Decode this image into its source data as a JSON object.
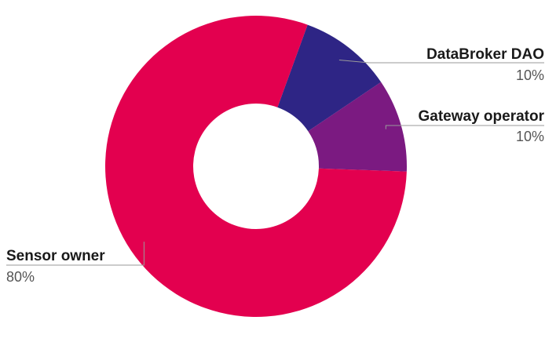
{
  "chart_data": {
    "type": "pie",
    "donut": true,
    "start_angle_deg": 20,
    "categories": [
      "DataBroker DAO",
      "Gateway operator",
      "Sensor owner"
    ],
    "values": [
      10,
      10,
      80
    ],
    "value_labels": [
      "10%",
      "10%",
      "80%"
    ],
    "colors": [
      "#2e2585",
      "#7b1a81",
      "#e3004f"
    ],
    "legend": "none"
  }
}
